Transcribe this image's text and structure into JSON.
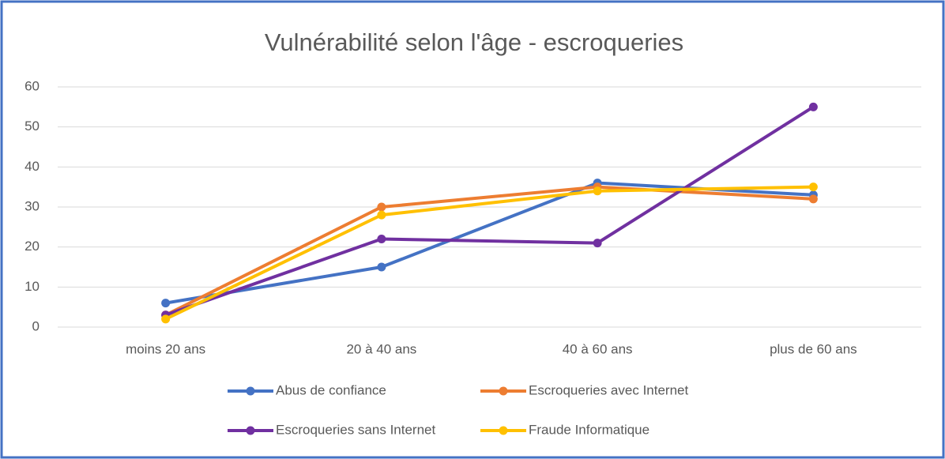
{
  "chart_data": {
    "type": "line",
    "title": "Vulnérabilité selon l'âge - escroqueries",
    "categories": [
      "moins 20 ans",
      "20 à 40 ans",
      "40 à 60 ans",
      "plus de 60 ans"
    ],
    "series": [
      {
        "name": "Abus de confiance",
        "color": "#4472c4",
        "values": [
          6,
          15,
          36,
          33
        ]
      },
      {
        "name": "Escroqueries avec Internet",
        "color": "#ed7d31",
        "values": [
          3,
          30,
          35,
          32
        ]
      },
      {
        "name": "Escroqueries sans Internet",
        "color": "#7030a0",
        "values": [
          3,
          22,
          21,
          55
        ]
      },
      {
        "name": "Fraude Informatique",
        "color": "#ffc000",
        "values": [
          2,
          28,
          34,
          35
        ]
      }
    ],
    "ylim": [
      0,
      60
    ],
    "yticks": [
      0,
      10,
      20,
      30,
      40,
      50,
      60
    ],
    "grid": true,
    "legend": "bottom"
  }
}
